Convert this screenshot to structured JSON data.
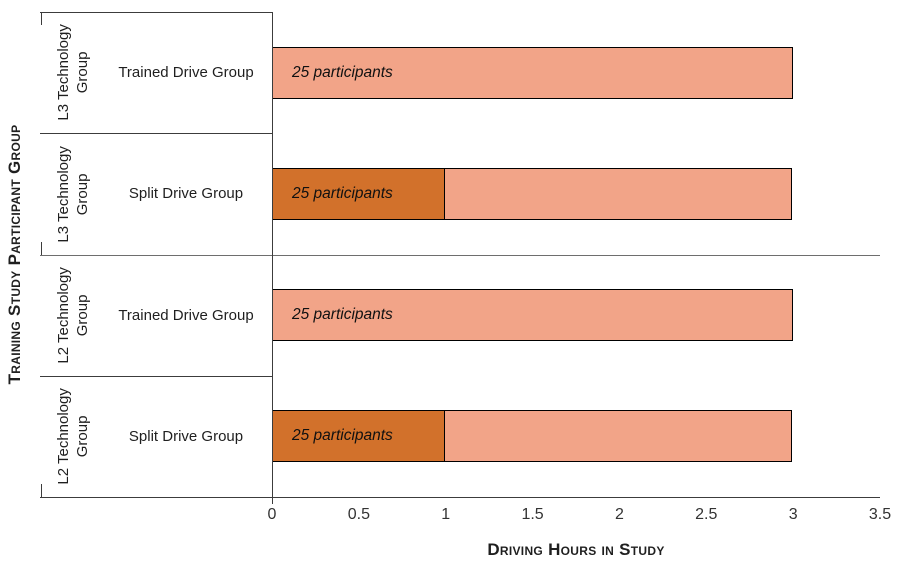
{
  "chart_data": {
    "type": "bar",
    "orientation": "horizontal",
    "stacked": true,
    "xlabel": "Driving Hours in Study",
    "ylabel": "Training  Study Participant Group",
    "xlim": [
      0,
      3.5
    ],
    "xtick_labels": [
      "0",
      "0.5",
      "1",
      "1.5",
      "2",
      "2.5",
      "3",
      "3.5"
    ],
    "grid": false,
    "legend": "none",
    "colors": {
      "light": "#F2A488",
      "dark": "#D2712B"
    },
    "rows": [
      {
        "group": "L3 Technology Group",
        "subgroup": "Trained Drive Group",
        "segments": [
          {
            "value": 3,
            "color": "light",
            "label": "25 participants"
          }
        ]
      },
      {
        "group": "L3 Technology Group",
        "subgroup": "Split Drive Group",
        "segments": [
          {
            "value": 1,
            "color": "dark",
            "label": "25 participants"
          },
          {
            "value": 2,
            "color": "light",
            "label": ""
          }
        ]
      },
      {
        "group": "L2 Technology Group",
        "subgroup": "Trained Drive Group",
        "segments": [
          {
            "value": 3,
            "color": "light",
            "label": "25 participants"
          }
        ]
      },
      {
        "group": "L2 Technology Group",
        "subgroup": "Split Drive Group",
        "segments": [
          {
            "value": 1,
            "color": "dark",
            "label": "25 participants"
          },
          {
            "value": 2,
            "color": "light",
            "label": ""
          }
        ]
      }
    ]
  }
}
